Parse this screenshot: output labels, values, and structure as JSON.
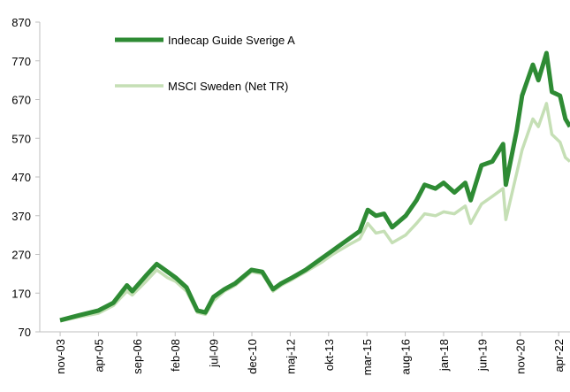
{
  "chart_data": {
    "type": "line",
    "x": [
      2003.83,
      2004.5,
      2005.25,
      2005.8,
      2006.3,
      2006.5,
      2007.0,
      2007.4,
      2007.8,
      2008.1,
      2008.5,
      2008.9,
      2009.2,
      2009.5,
      2009.9,
      2010.3,
      2010.9,
      2011.3,
      2011.7,
      2012.0,
      2012.4,
      2012.9,
      2013.5,
      2013.9,
      2014.5,
      2014.9,
      2015.2,
      2015.5,
      2015.8,
      2016.1,
      2016.6,
      2017.0,
      2017.3,
      2017.7,
      2018.0,
      2018.4,
      2018.8,
      2019.0,
      2019.4,
      2019.8,
      2020.2,
      2020.3,
      2020.7,
      2020.9,
      2021.3,
      2021.5,
      2021.8,
      2022.0,
      2022.3,
      2022.5,
      2022.67
    ],
    "series": [
      {
        "name": "Indecap Guide Sverige A",
        "color": "#2e8b34",
        "values": [
          100,
          112,
          125,
          145,
          190,
          175,
          215,
          245,
          225,
          210,
          185,
          125,
          120,
          160,
          180,
          195,
          230,
          225,
          180,
          195,
          210,
          230,
          260,
          280,
          310,
          330,
          385,
          370,
          375,
          340,
          370,
          410,
          450,
          440,
          455,
          430,
          455,
          410,
          500,
          510,
          555,
          450,
          590,
          680,
          760,
          720,
          790,
          690,
          680,
          620,
          600
        ]
      },
      {
        "name": "MSCI Sweden (Net TR)",
        "color": "#c5dfb5",
        "values": [
          98,
          108,
          118,
          138,
          175,
          165,
          200,
          230,
          210,
          200,
          175,
          120,
          115,
          150,
          175,
          190,
          225,
          220,
          175,
          190,
          205,
          225,
          250,
          270,
          295,
          310,
          350,
          325,
          330,
          300,
          320,
          350,
          375,
          370,
          380,
          375,
          395,
          350,
          400,
          420,
          440,
          360,
          480,
          540,
          620,
          600,
          660,
          580,
          560,
          520,
          510
        ]
      }
    ],
    "xlim": [
      2003.08,
      2022.67
    ],
    "xticks": [
      {
        "value": 2003.833,
        "label": "nov-03"
      },
      {
        "value": 2005.25,
        "label": "apr-05"
      },
      {
        "value": 2006.667,
        "label": "sep-06"
      },
      {
        "value": 2008.083,
        "label": "feb-08"
      },
      {
        "value": 2009.5,
        "label": "jul-09"
      },
      {
        "value": 2010.917,
        "label": "dec-10"
      },
      {
        "value": 2012.333,
        "label": "maj-12"
      },
      {
        "value": 2013.75,
        "label": "okt-13"
      },
      {
        "value": 2015.167,
        "label": "mar-15"
      },
      {
        "value": 2016.583,
        "label": "aug-16"
      },
      {
        "value": 2018.0,
        "label": "jan-18"
      },
      {
        "value": 2019.417,
        "label": "jun-19"
      },
      {
        "value": 2020.833,
        "label": "nov-20"
      },
      {
        "value": 2022.25,
        "label": "apr-22"
      }
    ],
    "ylim": [
      70,
      870
    ],
    "yticks": [
      70,
      170,
      270,
      370,
      470,
      570,
      670,
      770,
      870
    ],
    "grid": false,
    "legend": "top-left"
  }
}
